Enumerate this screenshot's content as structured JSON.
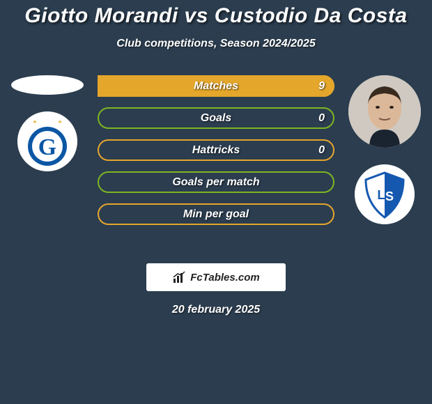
{
  "title": "Giotto Morandi vs Custodio Da Costa",
  "subtitle": "Club competitions, Season 2024/2025",
  "date": "20 february 2025",
  "brand": "FcTables.com",
  "colors": {
    "background": "#2b3d4f",
    "accent1": "#e4a62b",
    "accent2": "#7fb522",
    "text": "#ffffff"
  },
  "players": {
    "left": {
      "name": "Giotto Morandi",
      "club": "Grasshopper"
    },
    "right": {
      "name": "Custodio Da Costa",
      "club": "Lausanne-Sport"
    }
  },
  "bars": [
    {
      "label": "Matches",
      "left": "",
      "right": "9",
      "left_pct": 0,
      "right_pct": 100,
      "left_color": "#e4a62b",
      "right_color": "#e4a62b",
      "border": "#e4a62b"
    },
    {
      "label": "Goals",
      "left": "",
      "right": "0",
      "left_pct": 0,
      "right_pct": 0,
      "left_color": "#7fb522",
      "right_color": "#7fb522",
      "border": "#7fb522"
    },
    {
      "label": "Hattricks",
      "left": "",
      "right": "0",
      "left_pct": 0,
      "right_pct": 0,
      "left_color": "#e4a62b",
      "right_color": "#e4a62b",
      "border": "#e4a62b"
    },
    {
      "label": "Goals per match",
      "left": "",
      "right": "",
      "left_pct": 0,
      "right_pct": 0,
      "left_color": "#7fb522",
      "right_color": "#7fb522",
      "border": "#7fb522"
    },
    {
      "label": "Min per goal",
      "left": "",
      "right": "",
      "left_pct": 0,
      "right_pct": 0,
      "left_color": "#e4a62b",
      "right_color": "#e4a62b",
      "border": "#e4a62b"
    }
  ]
}
